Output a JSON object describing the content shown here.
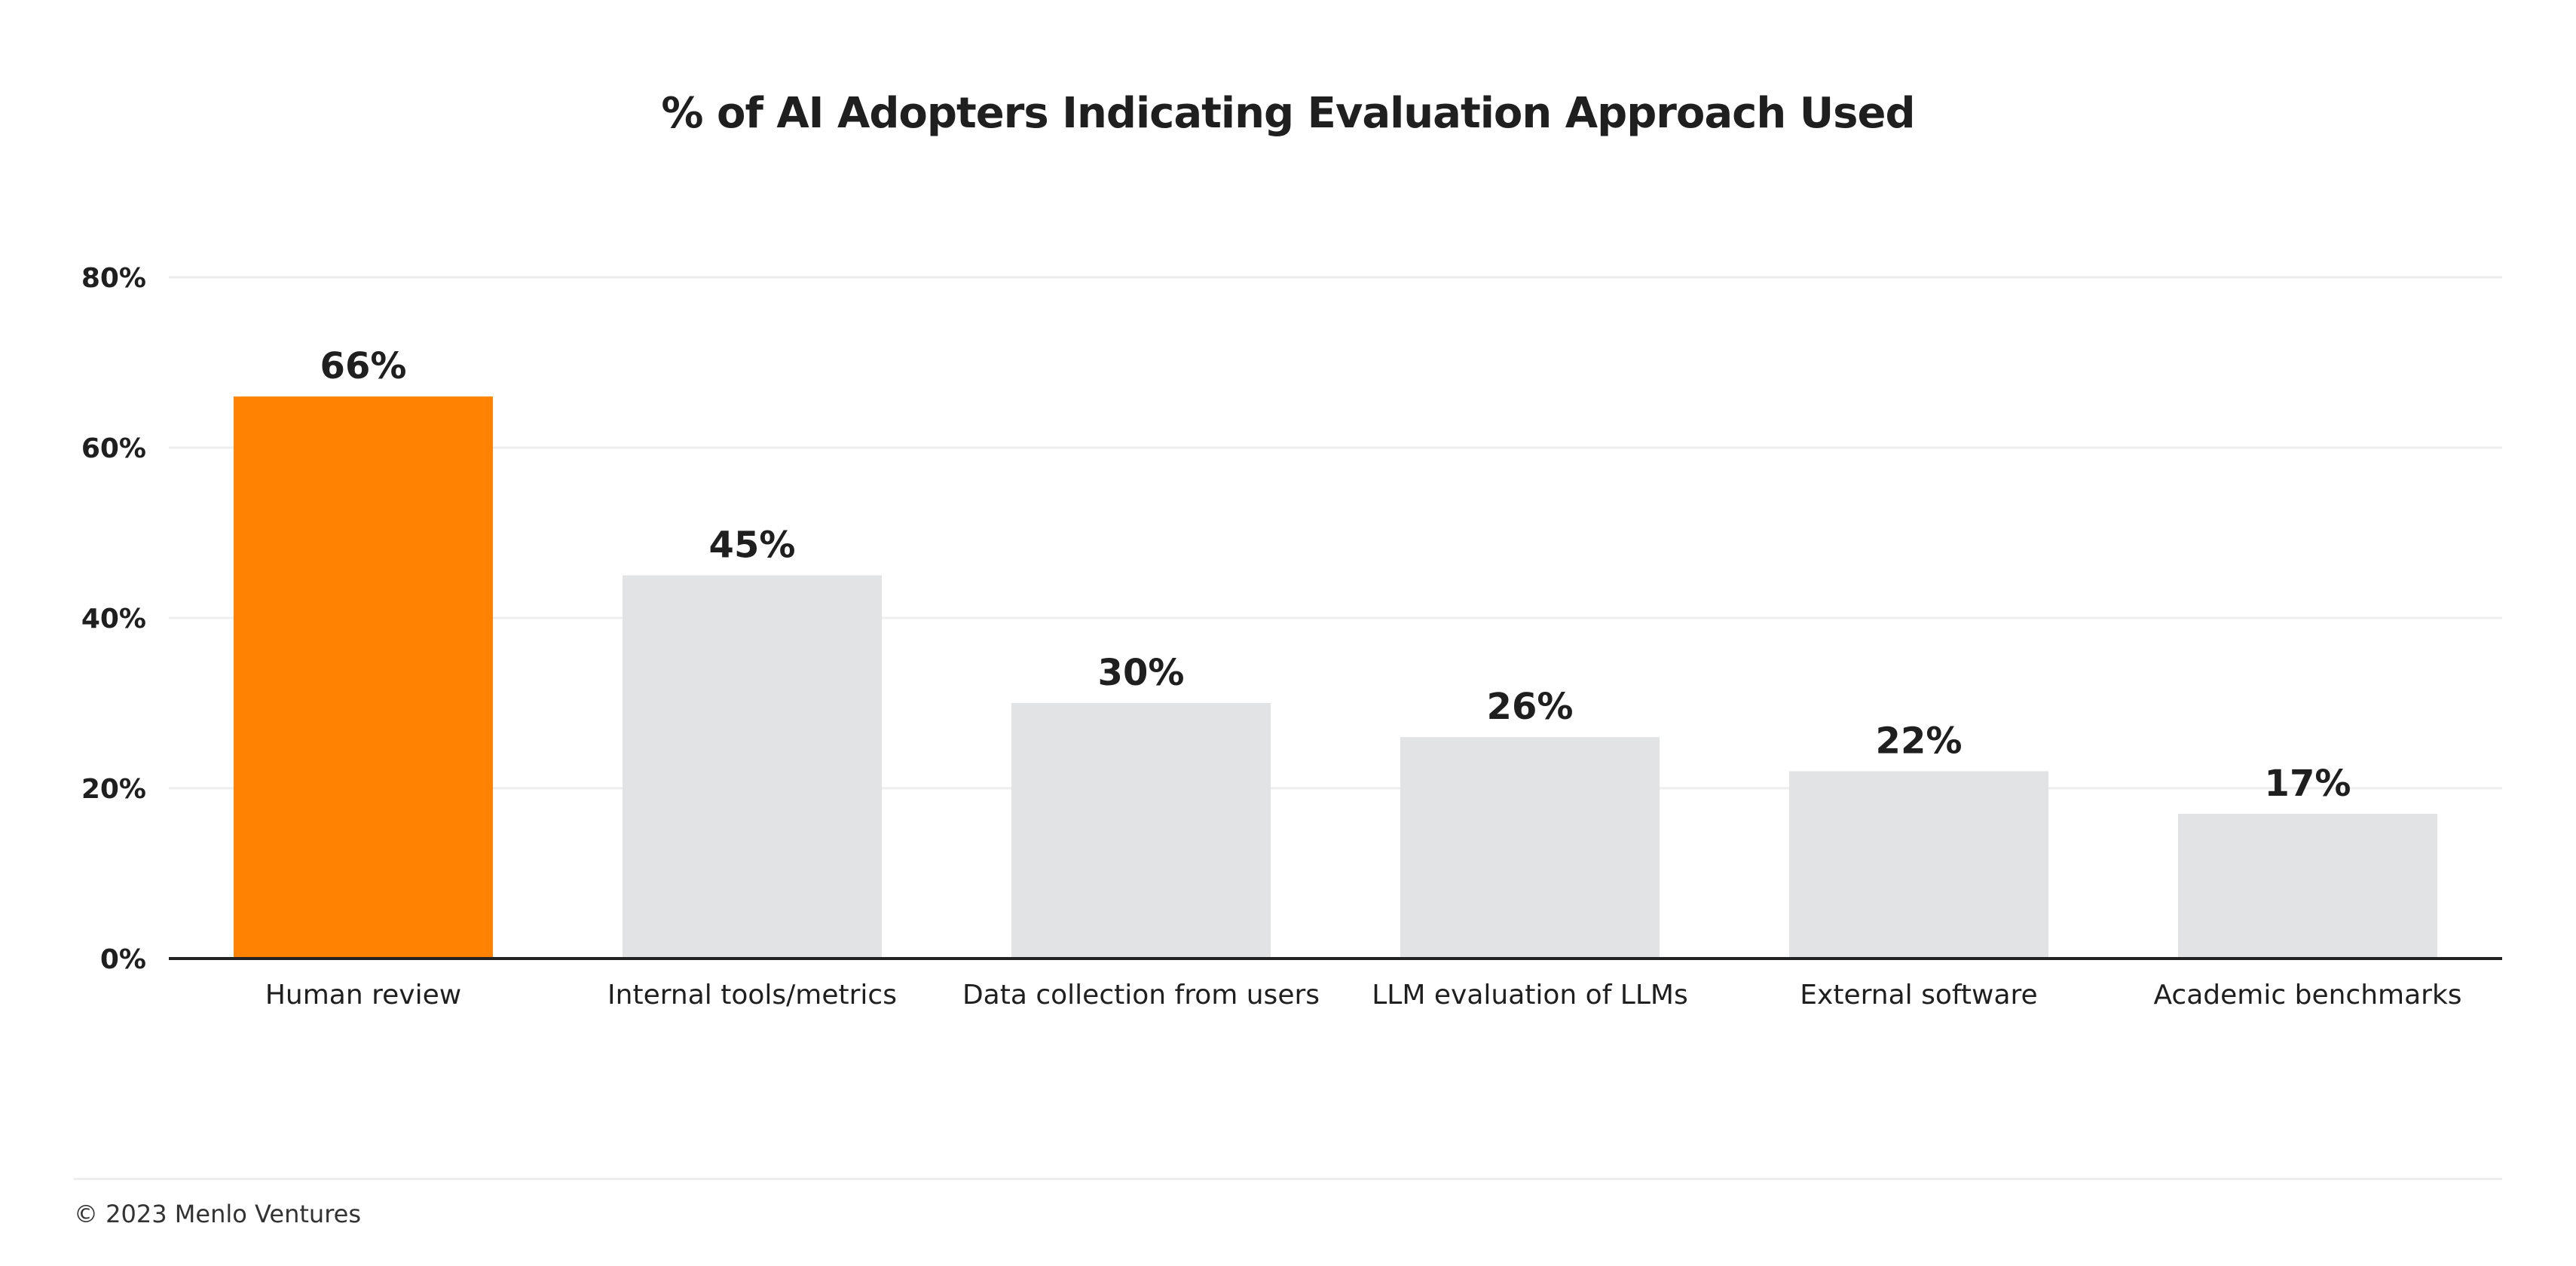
{
  "chart_data": {
    "type": "bar",
    "title": "% of AI Adopters Indicating Evaluation Approach Used",
    "categories": [
      "Human review",
      "Internal tools/metrics",
      "Data collection from users",
      "LLM evaluation of LLMs",
      "External software",
      "Academic benchmarks"
    ],
    "values": [
      66,
      45,
      30,
      26,
      22,
      17
    ],
    "value_labels": [
      "66%",
      "45%",
      "30%",
      "26%",
      "22%",
      "17%"
    ],
    "ylim": [
      0,
      80
    ],
    "yticks": [
      0,
      20,
      40,
      60,
      80
    ],
    "ytick_labels": [
      "0%",
      "20%",
      "40%",
      "60%",
      "80%"
    ],
    "xlabel": "",
    "ylabel": "",
    "grid": true,
    "colors": {
      "highlight": "#ff8200",
      "default": "#e2e3e4",
      "grid": "#eeeeee",
      "axis": "#222222",
      "text": "#1f1f1f"
    },
    "highlight_index": 0
  },
  "footer": {
    "text": "© 2023 Menlo Ventures"
  }
}
